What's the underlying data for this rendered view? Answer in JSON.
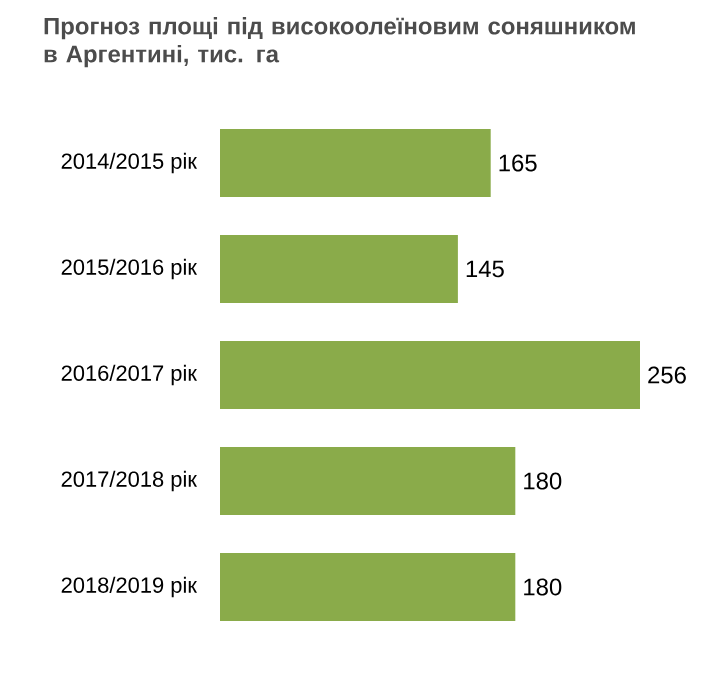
{
  "chart_data": {
    "type": "bar",
    "orientation": "horizontal",
    "title": "Прогноз площі під високоолеїновим соняшником в Аргентині, тис. га",
    "categories": [
      "2014/2015 рік",
      "2015/2016 рік",
      "2016/2017 рік",
      "2017/2018 рік",
      "2018/2019 рік"
    ],
    "values": [
      165,
      145,
      256,
      180,
      180
    ],
    "color": "#8aab4a",
    "data_labels": true
  }
}
